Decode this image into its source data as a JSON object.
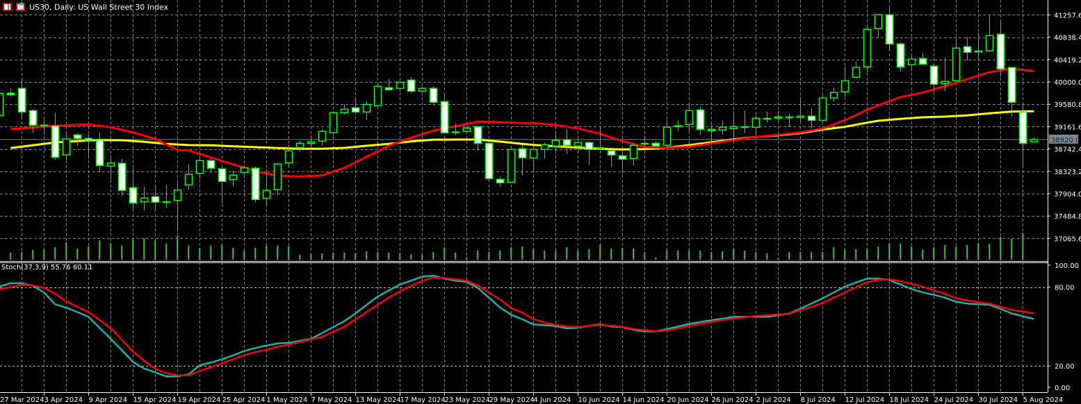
{
  "header": {
    "title": "US30, Daily:  US Wall Street 30 Index",
    "icons": [
      "chart-window-icon",
      "symbol-properties-icon"
    ]
  },
  "colors": {
    "background": "#000000",
    "grid": "#778899",
    "candle_outline": "#00ff00",
    "bull_body": "#000000",
    "bear_body": "#ffffff",
    "volume": "#32cd32",
    "ma_fast": "#ff0000",
    "ma_slow": "#ffff00",
    "stoch_main": "#20b2aa",
    "stoch_signal": "#ff0000",
    "price_tag": "#778899"
  },
  "price_axis": {
    "labels": [
      "41257.6",
      "40838.4",
      "40419.2",
      "40000.0",
      "39580.8",
      "39161.6",
      "38742.4",
      "38323.2",
      "37904.0",
      "37484.8",
      "37065.6"
    ],
    "current_price": "38920.0"
  },
  "time_axis": {
    "labels": [
      "27 Mar 2024",
      "3 Apr 2024",
      "9 Apr 2024",
      "15 Apr 2024",
      "19 Apr 2024",
      "25 Apr 2024",
      "1 May 2024",
      "7 May 2024",
      "13 May 2024",
      "17 May 2024",
      "23 May 2024",
      "29 May 2024",
      "4 Jun 2024",
      "10 Jun 2024",
      "14 Jun 2024",
      "20 Jun 2024",
      "26 Jun 2024",
      "2 Jul 2024",
      "8 Jul 2024",
      "12 Jul 2024",
      "18 Jul 2024",
      "24 Jul 2024",
      "30 Jul 2024",
      "5 Aug 2024"
    ]
  },
  "stoch": {
    "label": "Stoch(37,3,9) 55.76 60.11",
    "axis_labels": [
      "100.00",
      "80.00",
      "20.00",
      "0.00"
    ],
    "levels": [
      80,
      20
    ],
    "range": [
      0,
      100
    ]
  },
  "chart_data": {
    "type": "candlestick",
    "symbol": "US30",
    "timeframe": "Daily",
    "ylim": [
      36900,
      41500
    ],
    "candles_columns": [
      "date",
      "open",
      "high",
      "low",
      "close"
    ],
    "candles": [
      [
        "2024-03-27",
        39366,
        39850,
        39300,
        39788
      ],
      [
        "2024-03-28",
        39790,
        39880,
        39723,
        39762
      ],
      [
        "2024-04-01",
        39879,
        40026,
        39345,
        39436
      ],
      [
        "2024-04-02",
        39462,
        39488,
        39040,
        39189
      ],
      [
        "2024-04-03",
        39190,
        39310,
        39010,
        39180
      ],
      [
        "2024-04-04",
        39171,
        39427,
        38542,
        38585
      ],
      [
        "2024-04-05",
        38629,
        39062,
        38542,
        38932
      ],
      [
        "2024-04-08",
        39007,
        39040,
        38802,
        38941
      ],
      [
        "2024-04-09",
        38940,
        39010,
        38564,
        38900
      ],
      [
        "2024-04-10",
        38923,
        39049,
        38304,
        38434
      ],
      [
        "2024-04-11",
        38421,
        38594,
        38173,
        38477
      ],
      [
        "2024-04-12",
        38473,
        38555,
        37856,
        37965
      ],
      [
        "2024-04-15",
        38017,
        38382,
        37617,
        37731
      ],
      [
        "2024-04-16",
        37752,
        38034,
        37587,
        37822
      ],
      [
        "2024-04-17",
        37848,
        38043,
        37600,
        37744
      ],
      [
        "2024-04-18",
        37752,
        38073,
        37643,
        37748
      ],
      [
        "2024-04-19",
        37778,
        38116,
        37217,
        37969
      ],
      [
        "2024-04-22",
        38069,
        38451,
        37973,
        38264
      ],
      [
        "2024-04-23",
        38285,
        38594,
        38173,
        38525
      ],
      [
        "2024-04-24",
        38525,
        38564,
        38298,
        38382
      ],
      [
        "2024-04-25",
        38369,
        38447,
        37718,
        38134
      ],
      [
        "2024-04-26",
        38168,
        38333,
        38038,
        38251
      ],
      [
        "2024-04-29",
        38303,
        38421,
        38194,
        38390
      ],
      [
        "2024-04-30",
        38382,
        38412,
        37739,
        37796
      ],
      [
        "2024-05-01",
        37817,
        38356,
        37700,
        37965
      ],
      [
        "2024-05-02",
        37978,
        38473,
        37869,
        38460
      ],
      [
        "2024-05-03",
        38481,
        38824,
        38402,
        38707
      ],
      [
        "2024-05-06",
        38767,
        38893,
        38689,
        38850
      ],
      [
        "2024-05-07",
        38845,
        38994,
        38789,
        38876
      ],
      [
        "2024-05-08",
        38889,
        39115,
        38802,
        39072
      ],
      [
        "2024-05-09",
        39046,
        39453,
        38945,
        39423
      ],
      [
        "2024-05-10",
        39423,
        39583,
        39397,
        39488
      ],
      [
        "2024-05-13",
        39514,
        39688,
        39410,
        39436
      ],
      [
        "2024-05-14",
        39436,
        39635,
        39288,
        39579
      ],
      [
        "2024-05-15",
        39553,
        39965,
        39553,
        39918
      ],
      [
        "2024-05-16",
        39892,
        40052,
        39835,
        39853
      ],
      [
        "2024-05-17",
        39879,
        40009,
        39814,
        39996
      ],
      [
        "2024-05-20",
        40035,
        40091,
        39796,
        39827
      ],
      [
        "2024-05-21",
        39827,
        39918,
        39788,
        39879
      ],
      [
        "2024-05-22",
        39879,
        39918,
        39561,
        39619
      ],
      [
        "2024-05-23",
        39631,
        39775,
        39020,
        39046
      ],
      [
        "2024-05-24",
        39062,
        39215,
        39001,
        39058
      ],
      [
        "2024-05-27",
        39072,
        39137,
        39020,
        39137
      ],
      [
        "2024-05-28",
        39163,
        39163,
        38715,
        38850
      ],
      [
        "2024-05-29",
        38850,
        38850,
        38160,
        38186
      ],
      [
        "2024-05-30",
        38173,
        38225,
        38030,
        38108
      ],
      [
        "2024-05-31",
        38121,
        38733,
        38121,
        38733
      ],
      [
        "2024-06-03",
        38746,
        38824,
        38246,
        38577
      ],
      [
        "2024-06-04",
        38572,
        38733,
        38333,
        38733
      ],
      [
        "2024-06-05",
        38733,
        38863,
        38559,
        38824
      ],
      [
        "2024-06-06",
        38798,
        39062,
        38715,
        38902
      ],
      [
        "2024-06-07",
        38915,
        39115,
        38650,
        38811
      ],
      [
        "2024-06-10",
        38798,
        38915,
        38655,
        38863
      ],
      [
        "2024-06-11",
        38863,
        38889,
        38442,
        38733
      ],
      [
        "2024-06-12",
        38765,
        39167,
        38715,
        38760
      ],
      [
        "2024-06-13",
        38707,
        38707,
        38403,
        38629
      ],
      [
        "2024-06-14",
        38616,
        38668,
        38277,
        38551
      ],
      [
        "2024-06-17",
        38564,
        38863,
        38429,
        38811
      ],
      [
        "2024-06-18",
        38847,
        38975,
        38785,
        38843
      ],
      [
        "2024-06-19",
        38850,
        38889,
        38798,
        38798
      ],
      [
        "2024-06-20",
        38811,
        39293,
        38759,
        39150
      ],
      [
        "2024-06-21",
        39178,
        39280,
        39072,
        39172
      ],
      [
        "2024-06-24",
        39202,
        39605,
        39046,
        39462
      ],
      [
        "2024-06-25",
        39475,
        39540,
        39007,
        39111
      ],
      [
        "2024-06-26",
        39085,
        39215,
        38889,
        39111
      ],
      [
        "2024-06-27",
        39098,
        39280,
        39020,
        39150
      ],
      [
        "2024-06-28",
        39124,
        39453,
        38889,
        39163
      ],
      [
        "2024-07-01",
        39160,
        39462,
        39040,
        39158
      ],
      [
        "2024-07-02",
        39150,
        39366,
        38997,
        39319
      ],
      [
        "2024-07-03",
        39316,
        39440,
        39236,
        39314
      ],
      [
        "2024-07-04",
        39319,
        39453,
        39258,
        39345
      ],
      [
        "2024-07-05",
        39342,
        39401,
        39158,
        39340
      ],
      [
        "2024-07-08",
        39332,
        39688,
        39258,
        39358
      ],
      [
        "2024-07-09",
        39358,
        39505,
        39128,
        39280
      ],
      [
        "2024-07-10",
        39280,
        39757,
        39258,
        39697
      ],
      [
        "2024-07-11",
        39697,
        39896,
        39626,
        39801
      ],
      [
        "2024-07-12",
        39814,
        40286,
        39723,
        40022
      ],
      [
        "2024-07-15",
        40087,
        40374,
        40056,
        40270
      ],
      [
        "2024-07-16",
        40283,
        41025,
        40178,
        40986
      ],
      [
        "2024-07-17",
        40999,
        41276,
        40829,
        41259
      ],
      [
        "2024-07-18",
        41259,
        41406,
        40595,
        40712
      ],
      [
        "2024-07-19",
        40712,
        40742,
        40199,
        40283
      ],
      [
        "2024-07-22",
        40322,
        40491,
        40204,
        40426
      ],
      [
        "2024-07-23",
        40439,
        40543,
        40322,
        40335
      ],
      [
        "2024-07-24",
        40296,
        40343,
        39814,
        39957
      ],
      [
        "2024-07-25",
        39970,
        40452,
        39827,
        40009
      ],
      [
        "2024-07-26",
        40022,
        40777,
        40009,
        40634
      ],
      [
        "2024-07-29",
        40660,
        40842,
        40400,
        40556
      ],
      [
        "2024-07-30",
        40579,
        40921,
        40439,
        40575
      ],
      [
        "2024-07-31",
        40582,
        41246,
        40556,
        40868
      ],
      [
        "2024-08-01",
        40894,
        41120,
        40100,
        40243
      ],
      [
        "2024-08-02",
        40270,
        40270,
        39345,
        39619
      ],
      [
        "2024-08-05",
        39436,
        39592,
        38394,
        38850
      ],
      [
        "2024-08-06",
        38876,
        38967,
        38863,
        38920
      ]
    ],
    "volume_relative": [
      null,
      30,
      33,
      42,
      42,
      54,
      75,
      48,
      57,
      84,
      72,
      60,
      87,
      93,
      84,
      69,
      102,
      60,
      51,
      60,
      63,
      51,
      39,
      51,
      60,
      60,
      57,
      21,
      24,
      27,
      30,
      30,
      28,
      36,
      33,
      30,
      28,
      24,
      21,
      33,
      54,
      30,
      11,
      39,
      33,
      39,
      54,
      57,
      46,
      39,
      39,
      54,
      39,
      45,
      64,
      48,
      51,
      48,
      33,
      9,
      39,
      39,
      39,
      39,
      33,
      36,
      46,
      39,
      33,
      27,
      6,
      33,
      33,
      33,
      33,
      54,
      42,
      45,
      46,
      57,
      69,
      69,
      57,
      42,
      54,
      63,
      57,
      63,
      72,
      69,
      99,
      90,
      114,
      0
    ],
    "ma_fast": [
      [
        "2024-03-28",
        39115
      ],
      [
        "2024-04-04",
        39176
      ],
      [
        "2024-04-09",
        39202
      ],
      [
        "2024-04-11",
        39150
      ],
      [
        "2024-04-15",
        39053
      ],
      [
        "2024-04-17",
        38932
      ],
      [
        "2024-04-19",
        38724
      ],
      [
        "2024-04-22",
        38715
      ],
      [
        "2024-04-24",
        38585
      ],
      [
        "2024-04-26",
        38455
      ],
      [
        "2024-04-30",
        38325
      ],
      [
        "2024-05-02",
        38238
      ],
      [
        "2024-05-06",
        38225
      ],
      [
        "2024-05-08",
        38246
      ],
      [
        "2024-05-10",
        38389
      ],
      [
        "2024-05-14",
        38594
      ],
      [
        "2024-05-16",
        38802
      ],
      [
        "2024-05-20",
        38955
      ],
      [
        "2024-05-22",
        39085
      ],
      [
        "2024-05-24",
        39171
      ],
      [
        "2024-05-28",
        39254
      ],
      [
        "2024-05-30",
        39245
      ],
      [
        "2024-06-03",
        39228
      ],
      [
        "2024-06-04",
        39228
      ],
      [
        "2024-06-06",
        39193
      ],
      [
        "2024-06-10",
        39128
      ],
      [
        "2024-06-12",
        39028
      ],
      [
        "2024-06-14",
        38890
      ],
      [
        "2024-06-18",
        38780
      ],
      [
        "2024-06-20",
        38759
      ],
      [
        "2024-06-24",
        38785
      ],
      [
        "2024-06-26",
        38845
      ],
      [
        "2024-06-28",
        38910
      ],
      [
        "2024-07-02",
        38968
      ],
      [
        "2024-07-04",
        39007
      ],
      [
        "2024-07-08",
        39053
      ],
      [
        "2024-07-10",
        39128
      ],
      [
        "2024-07-12",
        39280
      ],
      [
        "2024-07-16",
        39475
      ],
      [
        "2024-07-17",
        39561
      ],
      [
        "2024-07-19",
        39714
      ],
      [
        "2024-07-23",
        39801
      ],
      [
        "2024-07-25",
        39922
      ],
      [
        "2024-07-29",
        40052
      ],
      [
        "2024-07-31",
        40182
      ],
      [
        "2024-08-02",
        40247
      ],
      [
        "2024-08-06",
        40204
      ]
    ],
    "ma_slow": [
      [
        "2024-03-28",
        38759
      ],
      [
        "2024-04-02",
        38811
      ],
      [
        "2024-04-04",
        38863
      ],
      [
        "2024-04-08",
        38889
      ],
      [
        "2024-04-10",
        38910
      ],
      [
        "2024-04-12",
        38906
      ],
      [
        "2024-04-16",
        38876
      ],
      [
        "2024-04-18",
        38837
      ],
      [
        "2024-04-22",
        38815
      ],
      [
        "2024-04-24",
        38811
      ],
      [
        "2024-04-26",
        38793
      ],
      [
        "2024-04-30",
        38776
      ],
      [
        "2024-05-02",
        38759
      ],
      [
        "2024-05-06",
        38746
      ],
      [
        "2024-05-08",
        38746
      ],
      [
        "2024-05-10",
        38763
      ],
      [
        "2024-05-14",
        38802
      ],
      [
        "2024-05-16",
        38837
      ],
      [
        "2024-05-20",
        38884
      ],
      [
        "2024-05-22",
        38915
      ],
      [
        "2024-05-24",
        38919
      ],
      [
        "2024-05-28",
        38919
      ],
      [
        "2024-05-30",
        38880
      ],
      [
        "2024-06-03",
        38837
      ],
      [
        "2024-06-04",
        38819
      ],
      [
        "2024-06-06",
        38793
      ],
      [
        "2024-06-10",
        38767
      ],
      [
        "2024-06-12",
        38746
      ],
      [
        "2024-06-14",
        38733
      ],
      [
        "2024-06-18",
        38741
      ],
      [
        "2024-06-20",
        38763
      ],
      [
        "2024-06-24",
        38815
      ],
      [
        "2024-06-26",
        38867
      ],
      [
        "2024-06-28",
        38923
      ],
      [
        "2024-07-02",
        38968
      ],
      [
        "2024-07-04",
        38997
      ],
      [
        "2024-07-08",
        39040
      ],
      [
        "2024-07-10",
        39106
      ],
      [
        "2024-07-12",
        39158
      ],
      [
        "2024-07-16",
        39236
      ],
      [
        "2024-07-17",
        39271
      ],
      [
        "2024-07-19",
        39306
      ],
      [
        "2024-07-23",
        39336
      ],
      [
        "2024-07-25",
        39349
      ],
      [
        "2024-07-29",
        39371
      ],
      [
        "2024-07-31",
        39410
      ],
      [
        "2024-08-02",
        39444
      ],
      [
        "2024-08-06",
        39449
      ]
    ],
    "stoch_main": [
      80.4,
      83,
      83,
      81,
      76,
      67,
      64.5,
      61,
      57.4,
      49,
      40.6,
      32,
      23,
      18,
      15,
      12,
      12,
      13.5,
      20.4,
      22.5,
      25,
      28,
      31.3,
      33.6,
      35.5,
      37,
      37.6,
      39,
      40.6,
      45,
      49.5,
      54,
      60,
      66.5,
      72.8,
      77.5,
      82,
      85,
      88,
      88.8,
      86.5,
      85,
      84,
      79.5,
      72,
      64.5,
      59,
      55.5,
      51.6,
      51,
      50.4,
      48.6,
      49,
      50.5,
      51.6,
      50,
      49.5,
      47.5,
      46.3,
      46.3,
      48,
      50,
      52,
      53.5,
      54.8,
      56,
      57.4,
      57.4,
      57.4,
      57.4,
      58.5,
      60,
      63.5,
      67.5,
      71.5,
      76,
      80.4,
      83.5,
      86.5,
      86.5,
      85.5,
      82,
      78.5,
      76,
      74.2,
      72,
      69,
      67.5,
      67,
      66.6,
      63.5,
      60,
      57.8,
      55.76
    ],
    "stoch_signal": [
      78.6,
      80,
      81.8,
      81.2,
      79.5,
      75,
      69.2,
      65,
      61,
      55,
      48.6,
      40,
      31,
      24,
      17.7,
      14.5,
      12.8,
      12.8,
      16,
      19,
      21.8,
      25,
      28.3,
      30.5,
      32.2,
      34.5,
      36.2,
      38.2,
      40.2,
      42,
      46,
      49.8,
      55.5,
      61,
      66.6,
      72,
      76.8,
      81,
      84.8,
      87.4,
      87,
      86,
      85,
      81.2,
      76,
      70.6,
      64,
      60.5,
      55.6,
      53,
      51.2,
      50,
      49.5,
      50.5,
      51.2,
      50.5,
      49.8,
      48,
      47.4,
      46.3,
      47,
      48.6,
      50.5,
      52,
      53.4,
      55,
      56,
      57,
      58,
      58.5,
      59.2,
      59.8,
      62.5,
      65,
      68,
      72,
      75.9,
      80,
      83.9,
      85.5,
      86,
      84.5,
      82.5,
      80.5,
      77.5,
      75,
      71.5,
      70,
      68.5,
      67.5,
      65,
      62.7,
      61.5,
      60.11
    ]
  }
}
